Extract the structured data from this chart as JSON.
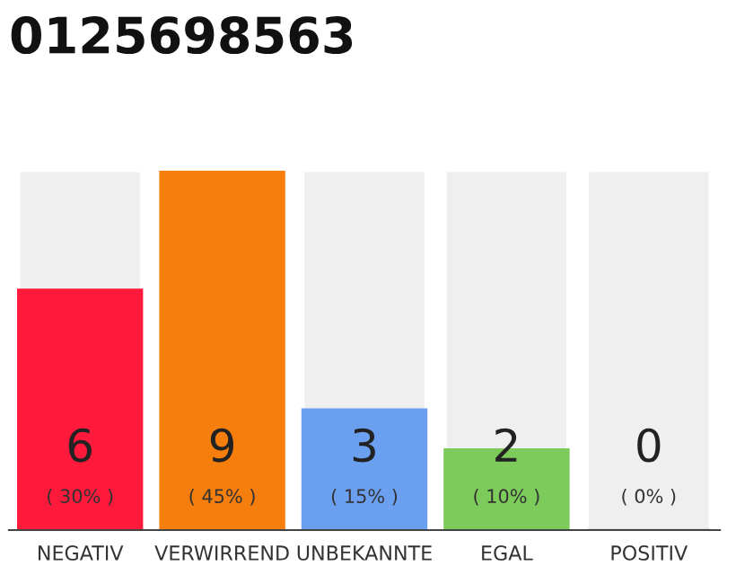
{
  "chart_data": {
    "type": "bar",
    "title": "0125698563",
    "categories": [
      "NEGATIV",
      "VERWIRREND",
      "UNBEKANNTE",
      "EGAL",
      "POSITIV"
    ],
    "values": [
      6,
      9,
      3,
      2,
      0
    ],
    "colors": [
      "#ff1a3c",
      "#f57e0c",
      "#6b9ff0",
      "#7dcb5a",
      "#d9d9d9"
    ],
    "data_labels": true,
    "annotations": [
      "( 30% )",
      "( 45% )",
      "( 15% )",
      "( 10% )",
      "( 0% )"
    ]
  }
}
